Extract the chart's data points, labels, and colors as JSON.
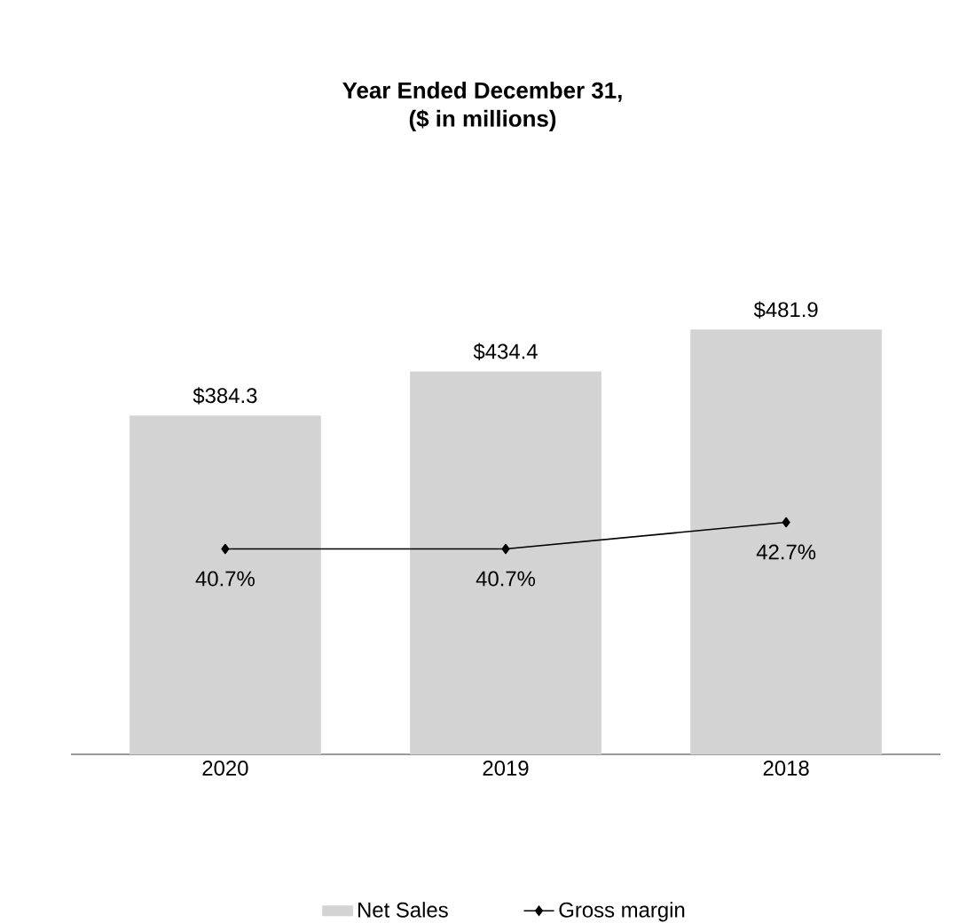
{
  "chart_data": {
    "type": "bar",
    "title": "Year Ended December 31,",
    "subtitle": "($ in millions)",
    "categories": [
      "2020",
      "2019",
      "2018"
    ],
    "series": [
      {
        "name": "Net Sales",
        "color": "#d3d3d3",
        "values": [
          384.3,
          434.4,
          481.9
        ],
        "value_labels": [
          "$384.3",
          "$434.4",
          "$481.9"
        ]
      },
      {
        "name": "Gross margin",
        "type": "line",
        "axis": "y2",
        "color": "#000000",
        "marker": "diamond",
        "values": [
          40.7,
          40.7,
          42.7
        ],
        "value_labels": [
          "40.7%",
          "40.7%",
          "42.7%"
        ]
      }
    ],
    "legend": "bottom",
    "tick_labels": "x"
  }
}
